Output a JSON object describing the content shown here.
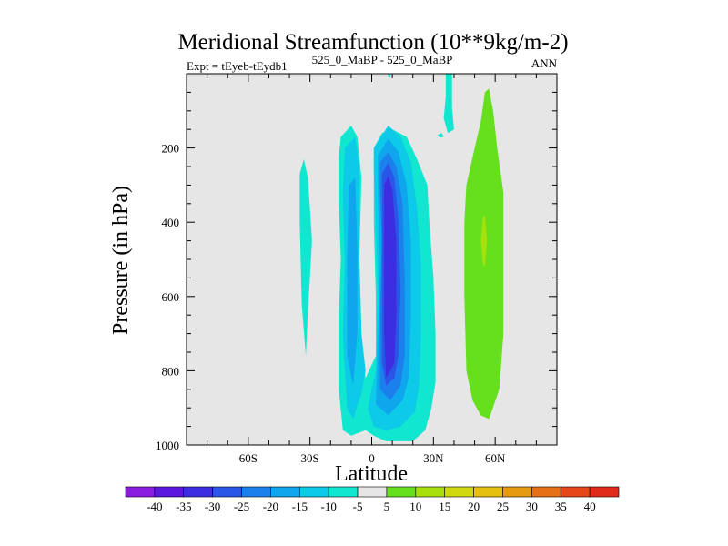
{
  "chart_data": {
    "type": "filled-contour",
    "title": "Meridional Streamfunction (10**9kg/m-2)",
    "subtitle_left": "Expt = tEyeb-tEydb1",
    "subtitle_center": "525_0_MaBP - 525_0_MaBP",
    "subtitle_right": "ANN",
    "xlabel": "Latitude",
    "ylabel": "Pressure (in hPa)",
    "xlim": [
      -90,
      90
    ],
    "ylim": [
      1000,
      0
    ],
    "x_ticks": [
      {
        "value": -60,
        "label": "60S"
      },
      {
        "value": -30,
        "label": "30S"
      },
      {
        "value": 0,
        "label": "0"
      },
      {
        "value": 30,
        "label": "30N"
      },
      {
        "value": 60,
        "label": "60N"
      }
    ],
    "y_ticks": [
      {
        "value": 200,
        "label": "200"
      },
      {
        "value": 400,
        "label": "400"
      },
      {
        "value": 600,
        "label": "600"
      },
      {
        "value": 800,
        "label": "800"
      },
      {
        "value": 1000,
        "label": "1000"
      }
    ],
    "background_level": "-5 to 5",
    "levels": [
      -40,
      -35,
      -30,
      -25,
      -20,
      -15,
      -10,
      -5,
      5,
      10,
      15,
      20,
      25,
      30,
      35,
      40
    ],
    "colorbar_colors": [
      "#8a1de0",
      "#5a17e0",
      "#3c2ee0",
      "#2a56e8",
      "#1c80ec",
      "#10a6ee",
      "#0ccae8",
      "#10e6d0",
      "#e6e6e6",
      "#66e01c",
      "#a8e00e",
      "#d0d810",
      "#e6c010",
      "#e69a12",
      "#e67016",
      "#e6461a",
      "#e02a1a"
    ],
    "regions": [
      {
        "name": "band-30s",
        "level": "-10 to -5",
        "color": "#10e6d0",
        "points": [
          [
            -33,
            230
          ],
          [
            -31,
            280
          ],
          [
            -29,
            450
          ],
          [
            -31,
            640
          ],
          [
            -32,
            760
          ],
          [
            -34,
            620
          ],
          [
            -35,
            400
          ],
          [
            -35,
            270
          ]
        ]
      },
      {
        "name": "tropics-outer",
        "level": "-10 to -5",
        "color": "#10e6d0",
        "points": [
          [
            -15,
            170
          ],
          [
            -10,
            140
          ],
          [
            -7,
            170
          ],
          [
            -5,
            280
          ],
          [
            -6,
            500
          ],
          [
            -5,
            700
          ],
          [
            -3,
            820
          ],
          [
            2,
            760
          ],
          [
            2,
            600
          ],
          [
            1,
            400
          ],
          [
            1,
            200
          ],
          [
            5,
            160
          ],
          [
            10,
            150
          ],
          [
            17,
            170
          ],
          [
            22,
            230
          ],
          [
            27,
            300
          ],
          [
            28,
            400
          ],
          [
            30,
            550
          ],
          [
            31,
            700
          ],
          [
            31,
            830
          ],
          [
            29,
            900
          ],
          [
            26,
            960
          ],
          [
            20,
            990
          ],
          [
            14,
            990
          ],
          [
            7,
            990
          ],
          [
            1,
            975
          ],
          [
            -3,
            960
          ],
          [
            -10,
            975
          ],
          [
            -14,
            960
          ],
          [
            -16,
            850
          ],
          [
            -16,
            650
          ],
          [
            -15,
            500
          ],
          [
            -16,
            350
          ],
          [
            -16,
            220
          ]
        ]
      },
      {
        "name": "sh-cell-l1",
        "level": "-15 to -10",
        "color": "#0ccae8",
        "points": [
          [
            -13,
            200
          ],
          [
            -8,
            170
          ],
          [
            -6,
            260
          ],
          [
            -6,
            500
          ],
          [
            -5,
            700
          ],
          [
            -3,
            800
          ],
          [
            -5,
            860
          ],
          [
            -9,
            930
          ],
          [
            -12,
            900
          ],
          [
            -14,
            700
          ],
          [
            -13,
            500
          ],
          [
            -14,
            320
          ]
        ]
      },
      {
        "name": "sh-cell-l2",
        "level": "-20 to -15",
        "color": "#10a6ee",
        "points": [
          [
            -11,
            300
          ],
          [
            -8,
            280
          ],
          [
            -7,
            480
          ],
          [
            -7,
            700
          ],
          [
            -9,
            840
          ],
          [
            -12,
            760
          ],
          [
            -12,
            500
          ]
        ]
      },
      {
        "name": "nh-cell-l1",
        "level": "-15 to -10",
        "color": "#0ccae8",
        "points": [
          [
            1,
            200
          ],
          [
            8,
            140
          ],
          [
            14,
            170
          ],
          [
            19,
            240
          ],
          [
            22,
            360
          ],
          [
            24,
            520
          ],
          [
            24,
            700
          ],
          [
            23,
            840
          ],
          [
            21,
            910
          ],
          [
            14,
            950
          ],
          [
            7,
            960
          ],
          [
            1,
            950
          ],
          [
            -2,
            900
          ],
          [
            2,
            800
          ],
          [
            3,
            600
          ],
          [
            2,
            400
          ],
          [
            1,
            260
          ]
        ]
      },
      {
        "name": "nh-cell-l2",
        "level": "-20 to -15",
        "color": "#10a6ee",
        "points": [
          [
            3,
            220
          ],
          [
            8,
            175
          ],
          [
            13,
            210
          ],
          [
            17,
            300
          ],
          [
            19,
            450
          ],
          [
            19,
            650
          ],
          [
            18,
            820
          ],
          [
            15,
            880
          ],
          [
            8,
            920
          ],
          [
            2,
            890
          ],
          [
            3,
            720
          ],
          [
            4,
            500
          ],
          [
            3,
            320
          ]
        ]
      },
      {
        "name": "nh-cell-l3",
        "level": "-25 to -20",
        "color": "#1c80ec",
        "points": [
          [
            4,
            240
          ],
          [
            8,
            210
          ],
          [
            12,
            250
          ],
          [
            15,
            350
          ],
          [
            16,
            550
          ],
          [
            16,
            760
          ],
          [
            14,
            840
          ],
          [
            9,
            880
          ],
          [
            4,
            850
          ],
          [
            4,
            650
          ],
          [
            5,
            450
          ],
          [
            4,
            320
          ]
        ]
      },
      {
        "name": "nh-cell-l4",
        "level": "-30 to -25",
        "color": "#2a56e8",
        "points": [
          [
            5,
            270
          ],
          [
            8,
            240
          ],
          [
            11,
            280
          ],
          [
            13,
            400
          ],
          [
            14,
            580
          ],
          [
            13,
            760
          ],
          [
            11,
            820
          ],
          [
            7,
            840
          ],
          [
            5,
            780
          ],
          [
            5,
            560
          ],
          [
            5,
            380
          ]
        ]
      },
      {
        "name": "nh-cell-l5",
        "level": "-35 to -30",
        "color": "#3c2ee0",
        "points": [
          [
            6,
            300
          ],
          [
            8,
            275
          ],
          [
            10,
            310
          ],
          [
            12,
            450
          ],
          [
            12,
            650
          ],
          [
            11,
            780
          ],
          [
            7,
            820
          ],
          [
            6,
            700
          ],
          [
            6,
            500
          ],
          [
            6,
            380
          ]
        ]
      },
      {
        "name": "top-sliver-1",
        "level": "-10 to -5",
        "color": "#10e6d0",
        "points": [
          [
            36,
            0
          ],
          [
            39,
            0
          ],
          [
            39,
            90
          ],
          [
            40,
            150
          ],
          [
            37,
            160
          ],
          [
            35,
            120
          ],
          [
            36,
            60
          ]
        ]
      },
      {
        "name": "top-sliver-2",
        "level": "-10 to -5",
        "color": "#10e6d0",
        "points": [
          [
            32,
            165
          ],
          [
            34,
            160
          ],
          [
            35,
            170
          ],
          [
            33,
            172
          ]
        ]
      },
      {
        "name": "top-dot",
        "level": "-10 to -5",
        "color": "#10e6d0",
        "points": [
          [
            8,
            0
          ],
          [
            9,
            0
          ],
          [
            9,
            10
          ],
          [
            8,
            10
          ]
        ]
      },
      {
        "name": "nh-pos-cell",
        "level": "5 to 10",
        "color": "#66e01c",
        "points": [
          [
            55,
            50
          ],
          [
            57,
            40
          ],
          [
            59,
            100
          ],
          [
            61,
            200
          ],
          [
            64,
            320
          ],
          [
            64,
            500
          ],
          [
            64,
            700
          ],
          [
            62,
            850
          ],
          [
            57,
            930
          ],
          [
            53,
            920
          ],
          [
            49,
            880
          ],
          [
            46,
            800
          ],
          [
            45,
            600
          ],
          [
            45,
            400
          ],
          [
            46,
            300
          ],
          [
            50,
            200
          ],
          [
            53,
            130
          ]
        ]
      },
      {
        "name": "nh-pos-core",
        "level": "10 to 15",
        "color": "#a8e00e",
        "points": [
          [
            54,
            390
          ],
          [
            55,
            380
          ],
          [
            56,
            450
          ],
          [
            55,
            520
          ],
          [
            54,
            510
          ],
          [
            53,
            450
          ]
        ]
      }
    ]
  }
}
